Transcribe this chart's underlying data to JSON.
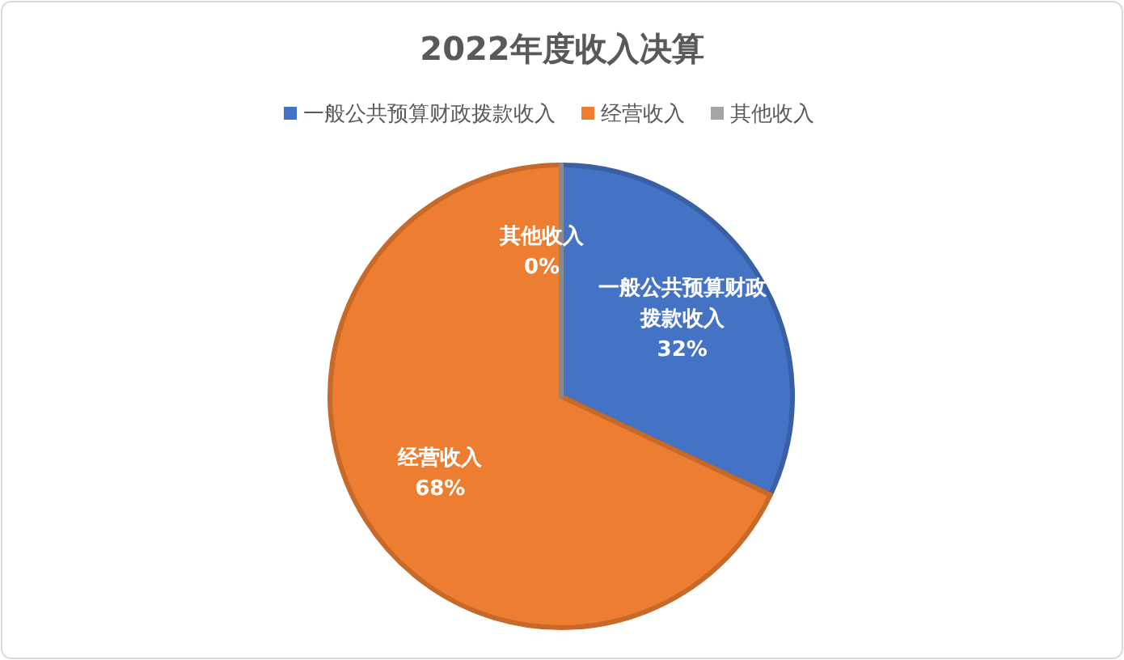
{
  "chart_data": {
    "type": "pie",
    "title": "2022年度收入决算",
    "categories": [
      "一般公共预算财政拨款收入",
      "经营收入",
      "其他收入"
    ],
    "values": [
      32,
      68,
      0
    ],
    "colors": [
      "#4472c4",
      "#ed7d31",
      "#a5a5a5"
    ],
    "value_labels": [
      "32%",
      "68%",
      "0%"
    ],
    "legend": "top"
  }
}
